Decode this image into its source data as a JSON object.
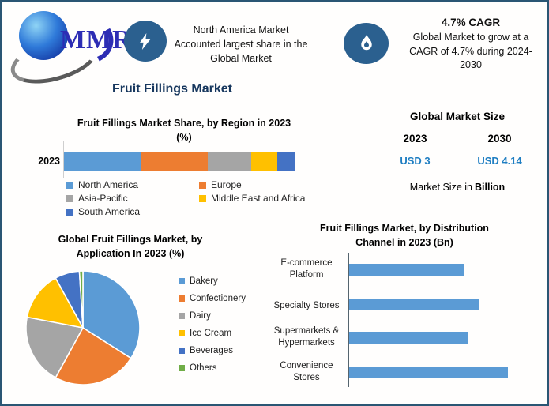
{
  "header": {
    "logo_text": "MMR",
    "note_left": {
      "lines": [
        "North America Market",
        "Accounted largest share in the",
        "Global Market"
      ]
    },
    "note_right": {
      "title": "4.7% CAGR",
      "lines": [
        "Global Market to grow at a",
        "CAGR of 4.7% during 2024-",
        "2030"
      ]
    }
  },
  "main_title": "Fruit Fillings Market",
  "market_size": {
    "title": "Global Market Size",
    "year_left": "2023",
    "year_right": "2030",
    "value_left": "USD 3",
    "value_right": "USD 4.14",
    "note_prefix": "Market Size in",
    "note_bold": "Billion",
    "value_color": "#1F7EC2"
  },
  "colors": {
    "frame_border": "#2A5674",
    "icon_circle": "#2B608F",
    "title_navy": "#17375E",
    "bar_blue": "#5B9BD5"
  },
  "chart_data": [
    {
      "id": "region-share",
      "type": "bar",
      "subtype": "stacked-horizontal",
      "title": "Fruit Fillings Market Share, by Region in 2023 (%)",
      "title_lines": [
        "Fruit Fillings Market Share, by Region in 2023",
        "(%)"
      ],
      "categories": [
        "2023"
      ],
      "series": [
        {
          "name": "North America",
          "values": [
            33
          ],
          "color": "#5B9BD5"
        },
        {
          "name": "Europe",
          "values": [
            29
          ],
          "color": "#ED7D31"
        },
        {
          "name": "Asia-Pacific",
          "values": [
            19
          ],
          "color": "#A5A5A5"
        },
        {
          "name": "Middle East and Africa",
          "values": [
            11
          ],
          "color": "#FFC000"
        },
        {
          "name": "South America",
          "values": [
            8
          ],
          "color": "#4472C4"
        }
      ],
      "xlim": [
        0,
        100
      ],
      "grid": false,
      "legend_position": "bottom"
    },
    {
      "id": "application-pie",
      "type": "pie",
      "title": "Global Fruit Fillings Market, by Application In 2023 (%)",
      "title_lines": [
        "Global Fruit Fillings Market, by",
        "Application In 2023 (%)"
      ],
      "labels": [
        "Bakery",
        "Confectionery",
        "Dairy",
        "Ice Cream",
        "Beverages",
        "Others"
      ],
      "values": [
        34,
        24,
        20,
        14,
        7,
        1
      ],
      "colors": [
        "#5B9BD5",
        "#ED7D31",
        "#A5A5A5",
        "#FFC000",
        "#4472C4",
        "#70AD47"
      ],
      "start_angle_deg": -90,
      "direction": "clockwise",
      "legend_position": "right"
    },
    {
      "id": "distribution-channel",
      "type": "bar",
      "subtype": "horizontal",
      "title": "Fruit Fillings Market, by Distribution Channel  in 2023 (Bn)",
      "title_lines": [
        "Fruit Fillings Market, by Distribution",
        "Channel  in 2023 (Bn)"
      ],
      "categories": [
        "E-commerce Platform",
        "Specialty Stores",
        "Supermarkets & Hypermarkets",
        "Convenience Stores"
      ],
      "category_lines": [
        [
          "E-commerce",
          "Platform"
        ],
        [
          "Specialty Stores"
        ],
        [
          "Supermarkets &",
          "Hypermarkets"
        ],
        [
          "Convenience",
          "Stores"
        ]
      ],
      "values": [
        72,
        82,
        75,
        100
      ],
      "value_scale": "relative length, max bar = 100 (axis unlabeled)",
      "color": "#5B9BD5",
      "grid": false
    }
  ]
}
